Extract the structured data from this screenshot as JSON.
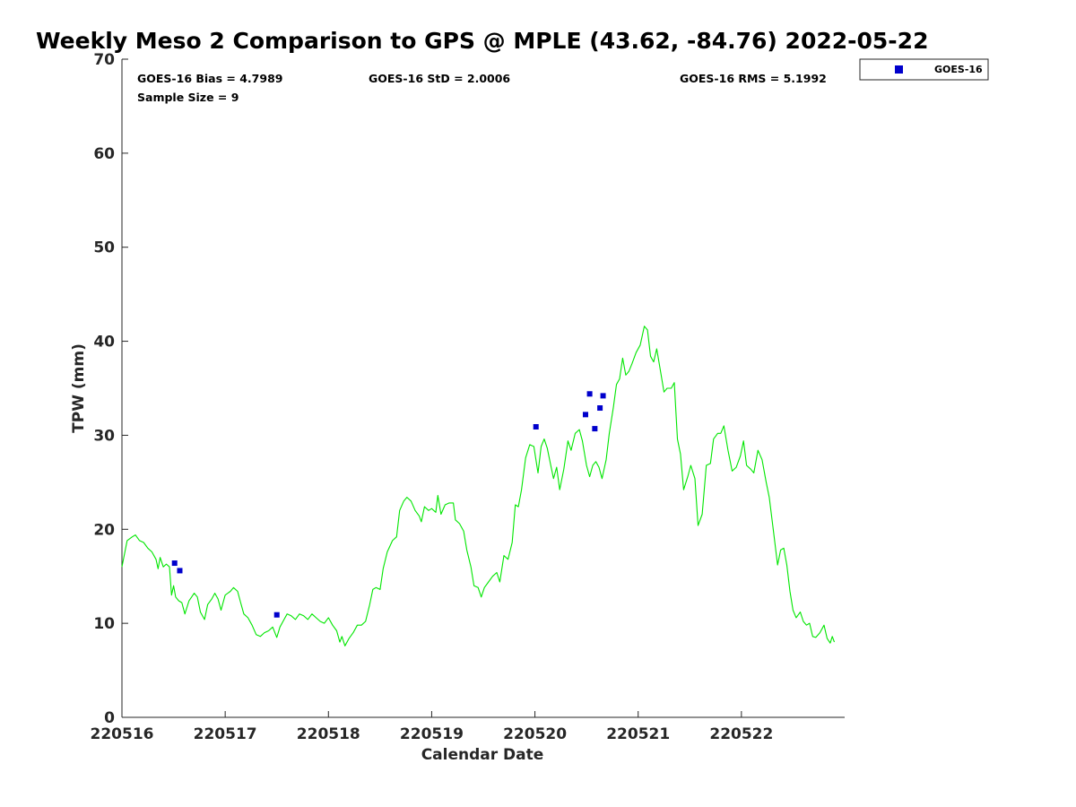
{
  "chart_data": {
    "type": "line",
    "title": "Weekly Meso 2 Comparison to GPS @ MPLE (43.62, -84.76) 2022-05-22",
    "xlabel": "Calendar Date",
    "ylabel": "TPW (mm)",
    "xlim": [
      0,
      7
    ],
    "ylim": [
      0,
      70
    ],
    "x_ticks": [
      {
        "x": 0,
        "label": "220516"
      },
      {
        "x": 1,
        "label": "220517"
      },
      {
        "x": 2,
        "label": "220518"
      },
      {
        "x": 3,
        "label": "220519"
      },
      {
        "x": 4,
        "label": "220520"
      },
      {
        "x": 5,
        "label": "220521"
      },
      {
        "x": 6,
        "label": "220522"
      }
    ],
    "y_ticks": [
      0,
      10,
      20,
      30,
      40,
      50,
      60,
      70
    ],
    "grid": false,
    "legend_position": "top-right, outside plot",
    "stats": {
      "bias": "GOES-16 Bias = 4.7989",
      "std": "GOES-16 StD = 2.0006",
      "rms": "GOES-16 RMS = 5.1992",
      "sample": "Sample Size = 9"
    },
    "series": [
      {
        "kind": "line",
        "color": "#00e600",
        "points": [
          [
            0.0,
            16.0
          ],
          [
            0.05,
            18.8
          ],
          [
            0.1,
            19.2
          ],
          [
            0.13,
            19.4
          ],
          [
            0.17,
            18.8
          ],
          [
            0.21,
            18.6
          ],
          [
            0.25,
            18.0
          ],
          [
            0.29,
            17.6
          ],
          [
            0.33,
            16.8
          ],
          [
            0.35,
            15.8
          ],
          [
            0.37,
            17.0
          ],
          [
            0.4,
            16.0
          ],
          [
            0.43,
            16.3
          ],
          [
            0.46,
            16.0
          ],
          [
            0.48,
            13.0
          ],
          [
            0.5,
            14.0
          ],
          [
            0.52,
            12.8
          ],
          [
            0.55,
            12.4
          ],
          [
            0.58,
            12.2
          ],
          [
            0.61,
            11.0
          ],
          [
            0.65,
            12.4
          ],
          [
            0.7,
            13.2
          ],
          [
            0.73,
            12.8
          ],
          [
            0.76,
            11.2
          ],
          [
            0.8,
            10.4
          ],
          [
            0.83,
            12.0
          ],
          [
            0.87,
            12.6
          ],
          [
            0.9,
            13.2
          ],
          [
            0.93,
            12.6
          ],
          [
            0.96,
            11.4
          ],
          [
            1.0,
            13.0
          ],
          [
            1.05,
            13.4
          ],
          [
            1.08,
            13.8
          ],
          [
            1.12,
            13.4
          ],
          [
            1.15,
            12.2
          ],
          [
            1.18,
            11.0
          ],
          [
            1.22,
            10.6
          ],
          [
            1.26,
            9.8
          ],
          [
            1.3,
            8.8
          ],
          [
            1.34,
            8.6
          ],
          [
            1.38,
            9.0
          ],
          [
            1.42,
            9.2
          ],
          [
            1.46,
            9.6
          ],
          [
            1.5,
            8.5
          ],
          [
            1.53,
            9.6
          ],
          [
            1.57,
            10.4
          ],
          [
            1.6,
            11.0
          ],
          [
            1.64,
            10.8
          ],
          [
            1.68,
            10.4
          ],
          [
            1.72,
            11.0
          ],
          [
            1.76,
            10.8
          ],
          [
            1.8,
            10.4
          ],
          [
            1.84,
            11.0
          ],
          [
            1.88,
            10.6
          ],
          [
            1.92,
            10.2
          ],
          [
            1.96,
            10.0
          ],
          [
            2.0,
            10.6
          ],
          [
            2.04,
            9.8
          ],
          [
            2.08,
            9.2
          ],
          [
            2.11,
            8.0
          ],
          [
            2.13,
            8.6
          ],
          [
            2.16,
            7.6
          ],
          [
            2.2,
            8.4
          ],
          [
            2.24,
            9.0
          ],
          [
            2.28,
            9.8
          ],
          [
            2.32,
            9.8
          ],
          [
            2.36,
            10.2
          ],
          [
            2.4,
            12.0
          ],
          [
            2.43,
            13.6
          ],
          [
            2.46,
            13.8
          ],
          [
            2.5,
            13.6
          ],
          [
            2.53,
            15.8
          ],
          [
            2.57,
            17.6
          ],
          [
            2.62,
            18.8
          ],
          [
            2.66,
            19.2
          ],
          [
            2.69,
            22.0
          ],
          [
            2.73,
            23.0
          ],
          [
            2.76,
            23.4
          ],
          [
            2.8,
            23.0
          ],
          [
            2.84,
            22.0
          ],
          [
            2.88,
            21.4
          ],
          [
            2.9,
            20.8
          ],
          [
            2.93,
            22.4
          ],
          [
            2.97,
            22.0
          ],
          [
            3.0,
            22.2
          ],
          [
            3.04,
            21.8
          ],
          [
            3.06,
            23.6
          ],
          [
            3.09,
            21.6
          ],
          [
            3.13,
            22.6
          ],
          [
            3.17,
            22.8
          ],
          [
            3.21,
            22.8
          ],
          [
            3.23,
            21.0
          ],
          [
            3.27,
            20.6
          ],
          [
            3.31,
            19.8
          ],
          [
            3.34,
            17.8
          ],
          [
            3.38,
            16.0
          ],
          [
            3.41,
            14.0
          ],
          [
            3.45,
            13.8
          ],
          [
            3.48,
            12.8
          ],
          [
            3.51,
            13.8
          ],
          [
            3.55,
            14.4
          ],
          [
            3.59,
            15.0
          ],
          [
            3.63,
            15.4
          ],
          [
            3.66,
            14.4
          ],
          [
            3.7,
            17.2
          ],
          [
            3.74,
            16.8
          ],
          [
            3.78,
            18.6
          ],
          [
            3.81,
            22.6
          ],
          [
            3.84,
            22.4
          ],
          [
            3.87,
            24.2
          ],
          [
            3.91,
            27.6
          ],
          [
            3.95,
            29.0
          ],
          [
            3.99,
            28.8
          ],
          [
            4.03,
            26.0
          ],
          [
            4.06,
            28.8
          ],
          [
            4.09,
            29.6
          ],
          [
            4.12,
            28.6
          ],
          [
            4.15,
            27.0
          ],
          [
            4.18,
            25.4
          ],
          [
            4.21,
            26.6
          ],
          [
            4.24,
            24.2
          ],
          [
            4.28,
            26.4
          ],
          [
            4.32,
            29.4
          ],
          [
            4.35,
            28.4
          ],
          [
            4.39,
            30.2
          ],
          [
            4.43,
            30.6
          ],
          [
            4.46,
            29.4
          ],
          [
            4.5,
            26.8
          ],
          [
            4.53,
            25.6
          ],
          [
            4.56,
            26.8
          ],
          [
            4.59,
            27.2
          ],
          [
            4.62,
            26.6
          ],
          [
            4.65,
            25.4
          ],
          [
            4.69,
            27.4
          ],
          [
            4.72,
            30.2
          ],
          [
            4.76,
            33.0
          ],
          [
            4.79,
            35.4
          ],
          [
            4.82,
            36.0
          ],
          [
            4.85,
            38.2
          ],
          [
            4.88,
            36.4
          ],
          [
            4.91,
            36.8
          ],
          [
            4.94,
            37.6
          ],
          [
            4.98,
            38.8
          ],
          [
            5.02,
            39.6
          ],
          [
            5.06,
            41.6
          ],
          [
            5.09,
            41.2
          ],
          [
            5.12,
            38.4
          ],
          [
            5.15,
            37.8
          ],
          [
            5.18,
            39.2
          ],
          [
            5.22,
            36.6
          ],
          [
            5.25,
            34.6
          ],
          [
            5.28,
            35.0
          ],
          [
            5.32,
            35.0
          ],
          [
            5.35,
            35.6
          ],
          [
            5.38,
            29.6
          ],
          [
            5.41,
            28.0
          ],
          [
            5.44,
            24.2
          ],
          [
            5.48,
            25.6
          ],
          [
            5.51,
            26.8
          ],
          [
            5.55,
            25.4
          ],
          [
            5.58,
            20.4
          ],
          [
            5.62,
            21.6
          ],
          [
            5.66,
            26.8
          ],
          [
            5.7,
            27.0
          ],
          [
            5.73,
            29.6
          ],
          [
            5.77,
            30.2
          ],
          [
            5.8,
            30.2
          ],
          [
            5.83,
            31.0
          ],
          [
            5.87,
            28.4
          ],
          [
            5.91,
            26.2
          ],
          [
            5.95,
            26.6
          ],
          [
            5.99,
            27.8
          ],
          [
            6.02,
            29.4
          ],
          [
            6.05,
            26.8
          ],
          [
            6.09,
            26.4
          ],
          [
            6.12,
            26.0
          ],
          [
            6.16,
            28.4
          ],
          [
            6.2,
            27.4
          ],
          [
            6.24,
            25.0
          ],
          [
            6.27,
            23.4
          ],
          [
            6.31,
            19.8
          ],
          [
            6.35,
            16.2
          ],
          [
            6.38,
            17.8
          ],
          [
            6.41,
            18.0
          ],
          [
            6.44,
            16.2
          ],
          [
            6.47,
            13.4
          ],
          [
            6.5,
            11.4
          ],
          [
            6.53,
            10.6
          ],
          [
            6.57,
            11.2
          ],
          [
            6.6,
            10.2
          ],
          [
            6.63,
            9.8
          ],
          [
            6.66,
            10.0
          ],
          [
            6.69,
            8.6
          ],
          [
            6.72,
            8.5
          ],
          [
            6.76,
            9.0
          ],
          [
            6.8,
            9.8
          ],
          [
            6.83,
            8.4
          ],
          [
            6.86,
            7.9
          ],
          [
            6.88,
            8.6
          ],
          [
            6.9,
            8.0
          ]
        ]
      },
      {
        "kind": "scatter",
        "name": "GOES-16",
        "color": "#0000cc",
        "points": [
          [
            0.51,
            16.4
          ],
          [
            0.56,
            15.6
          ],
          [
            1.5,
            10.9
          ],
          [
            4.01,
            30.9
          ],
          [
            4.49,
            32.2
          ],
          [
            4.53,
            34.4
          ],
          [
            4.58,
            30.7
          ],
          [
            4.63,
            32.9
          ],
          [
            4.66,
            34.2
          ]
        ]
      }
    ]
  }
}
